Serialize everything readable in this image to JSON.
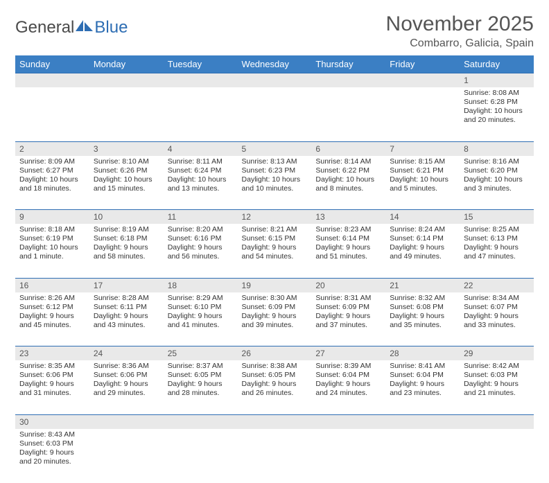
{
  "logo": {
    "part1": "General",
    "part2": "Blue"
  },
  "title": "November 2025",
  "location": "Combarro, Galicia, Spain",
  "weekdays": [
    "Sunday",
    "Monday",
    "Tuesday",
    "Wednesday",
    "Thursday",
    "Friday",
    "Saturday"
  ],
  "colors": {
    "header_bg": "#3b7fc4",
    "header_fg": "#ffffff",
    "daynum_bg": "#e9e9e9",
    "rule": "#2d6db3",
    "text": "#333333",
    "logo_blue": "#2d6db3",
    "logo_gray": "#4a4a4a"
  },
  "weeks": [
    [
      null,
      null,
      null,
      null,
      null,
      null,
      {
        "n": "1",
        "sunrise": "Sunrise: 8:08 AM",
        "sunset": "Sunset: 6:28 PM",
        "day1": "Daylight: 10 hours",
        "day2": "and 20 minutes."
      }
    ],
    [
      {
        "n": "2",
        "sunrise": "Sunrise: 8:09 AM",
        "sunset": "Sunset: 6:27 PM",
        "day1": "Daylight: 10 hours",
        "day2": "and 18 minutes."
      },
      {
        "n": "3",
        "sunrise": "Sunrise: 8:10 AM",
        "sunset": "Sunset: 6:26 PM",
        "day1": "Daylight: 10 hours",
        "day2": "and 15 minutes."
      },
      {
        "n": "4",
        "sunrise": "Sunrise: 8:11 AM",
        "sunset": "Sunset: 6:24 PM",
        "day1": "Daylight: 10 hours",
        "day2": "and 13 minutes."
      },
      {
        "n": "5",
        "sunrise": "Sunrise: 8:13 AM",
        "sunset": "Sunset: 6:23 PM",
        "day1": "Daylight: 10 hours",
        "day2": "and 10 minutes."
      },
      {
        "n": "6",
        "sunrise": "Sunrise: 8:14 AM",
        "sunset": "Sunset: 6:22 PM",
        "day1": "Daylight: 10 hours",
        "day2": "and 8 minutes."
      },
      {
        "n": "7",
        "sunrise": "Sunrise: 8:15 AM",
        "sunset": "Sunset: 6:21 PM",
        "day1": "Daylight: 10 hours",
        "day2": "and 5 minutes."
      },
      {
        "n": "8",
        "sunrise": "Sunrise: 8:16 AM",
        "sunset": "Sunset: 6:20 PM",
        "day1": "Daylight: 10 hours",
        "day2": "and 3 minutes."
      }
    ],
    [
      {
        "n": "9",
        "sunrise": "Sunrise: 8:18 AM",
        "sunset": "Sunset: 6:19 PM",
        "day1": "Daylight: 10 hours",
        "day2": "and 1 minute."
      },
      {
        "n": "10",
        "sunrise": "Sunrise: 8:19 AM",
        "sunset": "Sunset: 6:18 PM",
        "day1": "Daylight: 9 hours",
        "day2": "and 58 minutes."
      },
      {
        "n": "11",
        "sunrise": "Sunrise: 8:20 AM",
        "sunset": "Sunset: 6:16 PM",
        "day1": "Daylight: 9 hours",
        "day2": "and 56 minutes."
      },
      {
        "n": "12",
        "sunrise": "Sunrise: 8:21 AM",
        "sunset": "Sunset: 6:15 PM",
        "day1": "Daylight: 9 hours",
        "day2": "and 54 minutes."
      },
      {
        "n": "13",
        "sunrise": "Sunrise: 8:23 AM",
        "sunset": "Sunset: 6:14 PM",
        "day1": "Daylight: 9 hours",
        "day2": "and 51 minutes."
      },
      {
        "n": "14",
        "sunrise": "Sunrise: 8:24 AM",
        "sunset": "Sunset: 6:14 PM",
        "day1": "Daylight: 9 hours",
        "day2": "and 49 minutes."
      },
      {
        "n": "15",
        "sunrise": "Sunrise: 8:25 AM",
        "sunset": "Sunset: 6:13 PM",
        "day1": "Daylight: 9 hours",
        "day2": "and 47 minutes."
      }
    ],
    [
      {
        "n": "16",
        "sunrise": "Sunrise: 8:26 AM",
        "sunset": "Sunset: 6:12 PM",
        "day1": "Daylight: 9 hours",
        "day2": "and 45 minutes."
      },
      {
        "n": "17",
        "sunrise": "Sunrise: 8:28 AM",
        "sunset": "Sunset: 6:11 PM",
        "day1": "Daylight: 9 hours",
        "day2": "and 43 minutes."
      },
      {
        "n": "18",
        "sunrise": "Sunrise: 8:29 AM",
        "sunset": "Sunset: 6:10 PM",
        "day1": "Daylight: 9 hours",
        "day2": "and 41 minutes."
      },
      {
        "n": "19",
        "sunrise": "Sunrise: 8:30 AM",
        "sunset": "Sunset: 6:09 PM",
        "day1": "Daylight: 9 hours",
        "day2": "and 39 minutes."
      },
      {
        "n": "20",
        "sunrise": "Sunrise: 8:31 AM",
        "sunset": "Sunset: 6:09 PM",
        "day1": "Daylight: 9 hours",
        "day2": "and 37 minutes."
      },
      {
        "n": "21",
        "sunrise": "Sunrise: 8:32 AM",
        "sunset": "Sunset: 6:08 PM",
        "day1": "Daylight: 9 hours",
        "day2": "and 35 minutes."
      },
      {
        "n": "22",
        "sunrise": "Sunrise: 8:34 AM",
        "sunset": "Sunset: 6:07 PM",
        "day1": "Daylight: 9 hours",
        "day2": "and 33 minutes."
      }
    ],
    [
      {
        "n": "23",
        "sunrise": "Sunrise: 8:35 AM",
        "sunset": "Sunset: 6:06 PM",
        "day1": "Daylight: 9 hours",
        "day2": "and 31 minutes."
      },
      {
        "n": "24",
        "sunrise": "Sunrise: 8:36 AM",
        "sunset": "Sunset: 6:06 PM",
        "day1": "Daylight: 9 hours",
        "day2": "and 29 minutes."
      },
      {
        "n": "25",
        "sunrise": "Sunrise: 8:37 AM",
        "sunset": "Sunset: 6:05 PM",
        "day1": "Daylight: 9 hours",
        "day2": "and 28 minutes."
      },
      {
        "n": "26",
        "sunrise": "Sunrise: 8:38 AM",
        "sunset": "Sunset: 6:05 PM",
        "day1": "Daylight: 9 hours",
        "day2": "and 26 minutes."
      },
      {
        "n": "27",
        "sunrise": "Sunrise: 8:39 AM",
        "sunset": "Sunset: 6:04 PM",
        "day1": "Daylight: 9 hours",
        "day2": "and 24 minutes."
      },
      {
        "n": "28",
        "sunrise": "Sunrise: 8:41 AM",
        "sunset": "Sunset: 6:04 PM",
        "day1": "Daylight: 9 hours",
        "day2": "and 23 minutes."
      },
      {
        "n": "29",
        "sunrise": "Sunrise: 8:42 AM",
        "sunset": "Sunset: 6:03 PM",
        "day1": "Daylight: 9 hours",
        "day2": "and 21 minutes."
      }
    ],
    [
      {
        "n": "30",
        "sunrise": "Sunrise: 8:43 AM",
        "sunset": "Sunset: 6:03 PM",
        "day1": "Daylight: 9 hours",
        "day2": "and 20 minutes."
      },
      null,
      null,
      null,
      null,
      null,
      null
    ]
  ]
}
